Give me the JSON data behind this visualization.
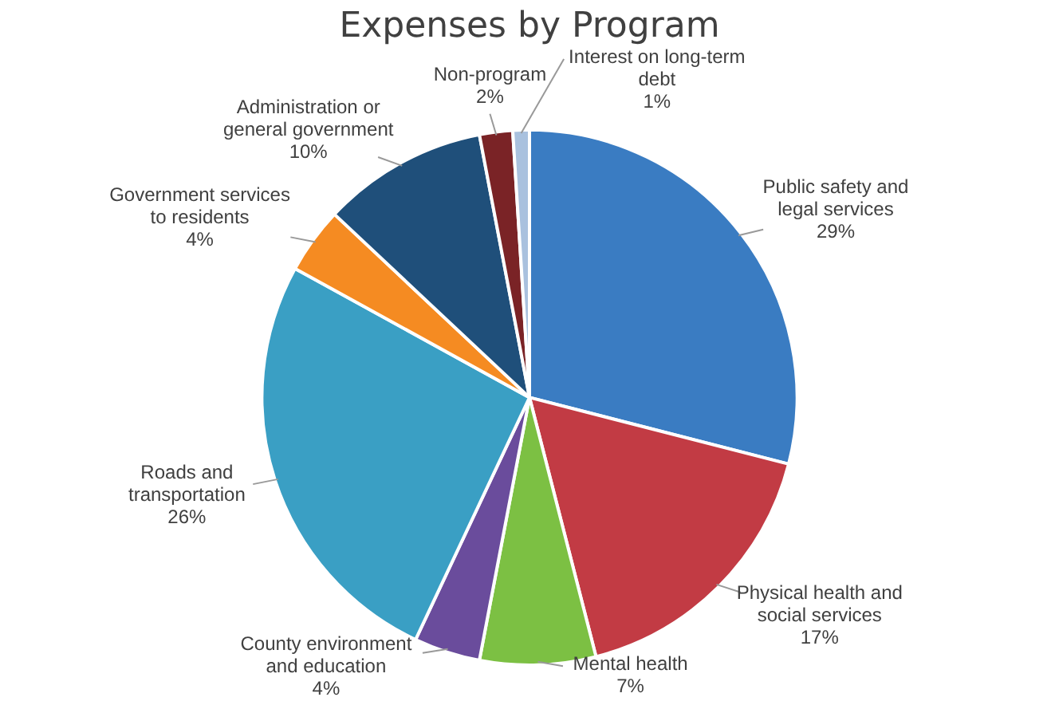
{
  "chart_data": {
    "type": "pie",
    "title": "Expenses by Program",
    "categories": [
      "Public safety and legal services",
      "Physical health and social services",
      "Mental health",
      "County environment and education",
      "Roads and transportation",
      "Government services to residents",
      "Administration or general government",
      "Non-program",
      "Interest on long-term debt"
    ],
    "values": [
      29,
      17,
      7,
      4,
      26,
      4,
      10,
      2,
      1
    ],
    "colors": [
      "#3a7cc2",
      "#c23b44",
      "#7cc043",
      "#6a4c9c",
      "#3a9fc4",
      "#f58b22",
      "#1f4f7a",
      "#7a2326",
      "#a9c1de"
    ],
    "value_labels": [
      "29%",
      "17%",
      "7%",
      "4%",
      "26%",
      "4%",
      "10%",
      "2%",
      "1%"
    ],
    "legend": false
  }
}
